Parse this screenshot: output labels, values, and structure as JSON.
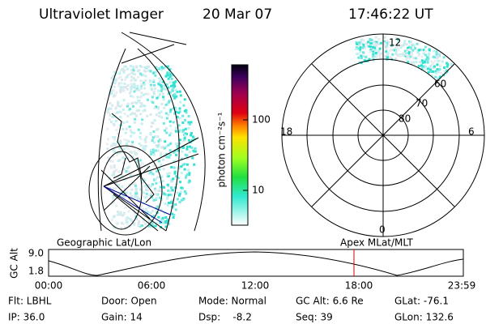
{
  "header": {
    "instrument": "Ultraviolet Imager",
    "date": "20 Mar 07",
    "time": "17:46:22 UT"
  },
  "colorbar": {
    "label": "photon cm⁻²s⁻¹",
    "ticks": [
      "100",
      "10"
    ]
  },
  "polar": {
    "top": "12",
    "left": "18",
    "right": "6",
    "bottom": "0",
    "rings": [
      "60",
      "70",
      "80"
    ]
  },
  "altitude": {
    "left_title": "Geographic Lat/Lon",
    "right_title": "Apex MLat/MLT",
    "axis_label": "GC Alt",
    "yticks": [
      "9.0",
      "1.8"
    ],
    "xticks": [
      "00:00",
      "06:00",
      "12:00",
      "18:00",
      "23:59"
    ]
  },
  "info": [
    [
      "Flt: LBHL",
      "Door: Open",
      "Mode: Normal",
      "GC Alt: 6.6 Re",
      "GLat: -76.1"
    ],
    [
      "IP: 36.0",
      "Gain: 14",
      "Dsp:    -8.2",
      "Seq: 39",
      "GLon: 132.6"
    ]
  ]
}
